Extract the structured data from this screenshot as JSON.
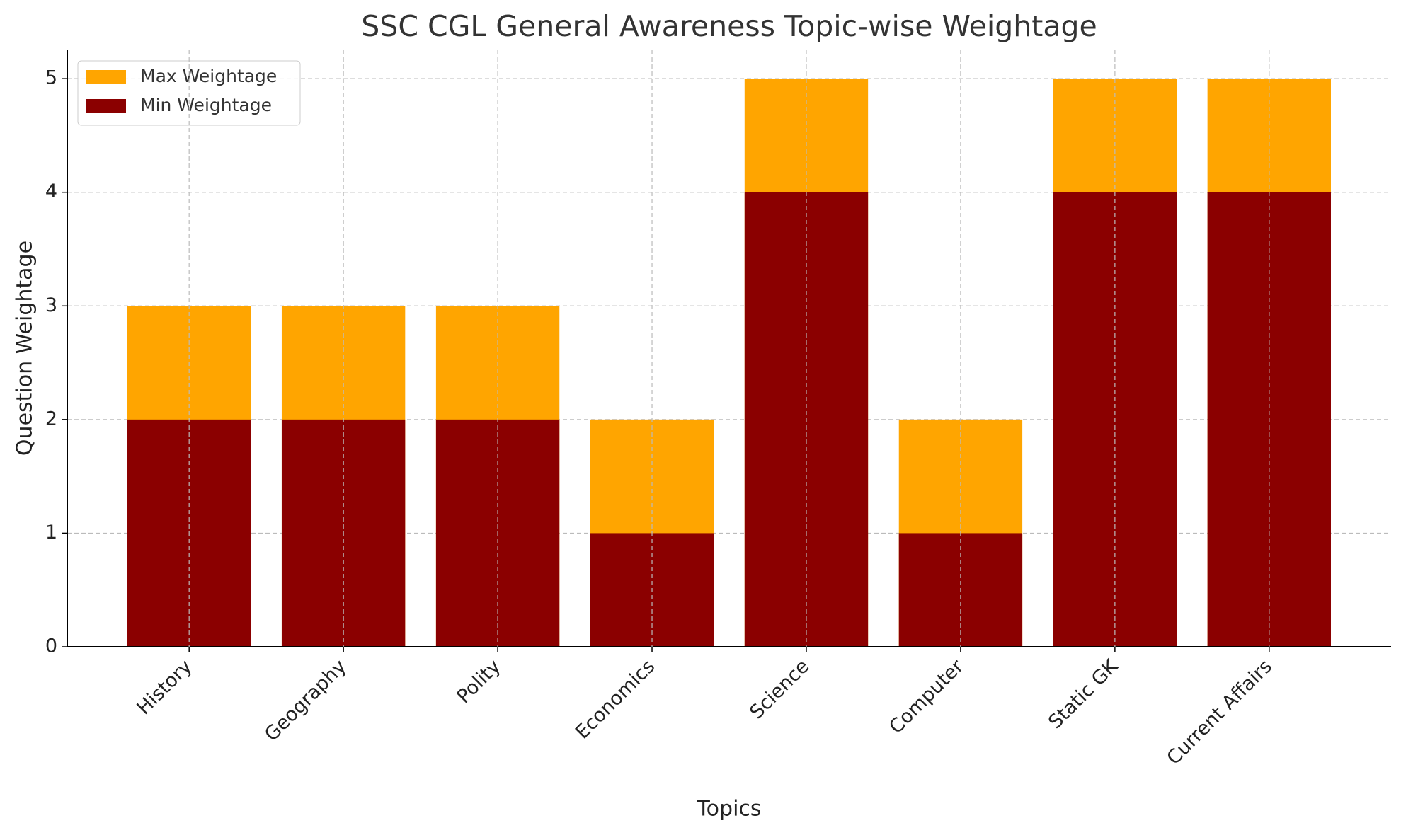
{
  "chart_data": {
    "type": "bar",
    "title": "SSC CGL General Awareness Topic-wise Weightage",
    "x_label": "Topics",
    "y_label": "Question Weightage",
    "categories": [
      "History",
      "Geography",
      "Polity",
      "Economics",
      "Science",
      "Computer",
      "Static GK",
      "Current Affairs"
    ],
    "series": [
      {
        "name": "Max Weightage",
        "color": "#ffa500",
        "values": [
          3,
          3,
          3,
          2,
          5,
          2,
          5,
          5
        ]
      },
      {
        "name": "Min Weightage",
        "color": "#8b0000",
        "values": [
          2,
          2,
          2,
          1,
          4,
          1,
          4,
          4
        ]
      }
    ],
    "ylim": [
      0,
      5.25
    ],
    "yticks": [
      0,
      1,
      2,
      3,
      4,
      5
    ],
    "grid": true,
    "legend": "upper left"
  }
}
